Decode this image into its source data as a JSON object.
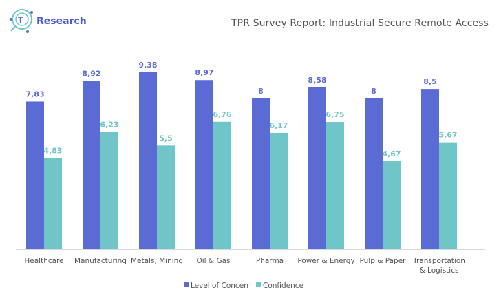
{
  "logo": {
    "text": "Research"
  },
  "chart_data": {
    "type": "bar",
    "title": "TPR Survey Report: Industrial Secure Remote Access",
    "categories": [
      "Healthcare",
      "Manufacturing",
      "Metals, Mining",
      "Oil & Gas",
      "Pharma",
      "Power & Energy",
      "Pulp & Paper",
      "Transportation & Logistics"
    ],
    "category_lines": [
      [
        "Healthcare"
      ],
      [
        "Manufacturing"
      ],
      [
        "Metals, Mining"
      ],
      [
        "Oil & Gas"
      ],
      [
        "Pharma"
      ],
      [
        "Power & Energy"
      ],
      [
        "Pulp & Paper"
      ],
      [
        "Transportation",
        "& Logistics"
      ]
    ],
    "series": [
      {
        "name": "Level of Concern",
        "color": "#5a6bd4",
        "values": [
          7.83,
          8.92,
          9.38,
          8.97,
          8,
          8.58,
          8,
          8.5
        ],
        "labels": [
          "7,83",
          "8,92",
          "9,38",
          "8,97",
          "8",
          "8,58",
          "8",
          "8,5"
        ]
      },
      {
        "name": "Confidence",
        "color": "#6fc5c8",
        "values": [
          4.83,
          6.23,
          5.5,
          6.76,
          6.17,
          6.75,
          4.67,
          5.67
        ],
        "labels": [
          "4,83",
          "6,23",
          "5,5",
          "6,76",
          "6,17",
          "6,75",
          "4,67",
          "5,67"
        ]
      }
    ],
    "xlabel": "",
    "ylabel": "",
    "ylim": [
      0,
      10
    ],
    "grid": false,
    "legend": "bottom"
  }
}
